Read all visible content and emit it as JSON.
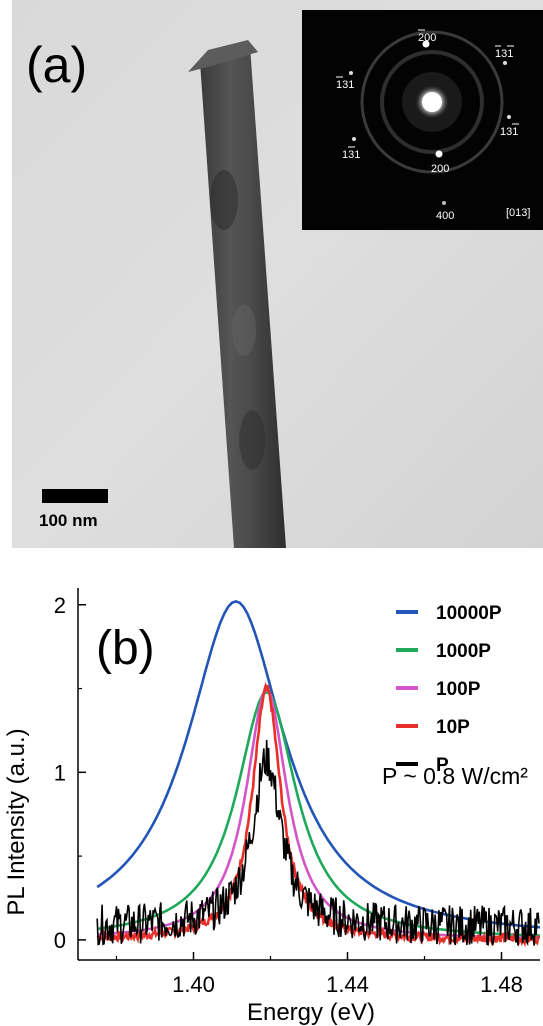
{
  "panel_a": {
    "label": "(a)",
    "scale_bar_label": "100 nm",
    "sad": {
      "zone_axis": "[013]",
      "spots": [
        {
          "label": "200",
          "bar": "2"
        },
        {
          "label": "131",
          "bar": "1"
        },
        {
          "label": "131",
          "bar": "12"
        },
        {
          "label": "131",
          "bar": "2"
        },
        {
          "label": "131",
          "bar": "3"
        },
        {
          "label": "200",
          "bar": ""
        },
        {
          "label": "400",
          "bar": ""
        }
      ]
    }
  },
  "panel_b": {
    "label": "(b)",
    "annotation": "P ~ 0.8 W/cm²"
  },
  "chart_data": {
    "type": "line",
    "title": "",
    "xlabel": "Energy (eV)",
    "ylabel": "PL Intensity (a.u.)",
    "xlim": [
      1.37,
      1.49
    ],
    "ylim": [
      -0.12,
      2.1
    ],
    "xticks": [
      1.4,
      1.44,
      1.48
    ],
    "xtick_labels": [
      "1.40",
      "1.44",
      "1.48"
    ],
    "yticks": [
      0,
      1,
      2
    ],
    "ytick_labels": [
      "0",
      "1",
      "2"
    ],
    "grid": false,
    "legend_position": "top-right",
    "series": [
      {
        "name": "10000P",
        "color": "#2255b8",
        "peak": 2.02,
        "center": 1.411,
        "width": 0.0155,
        "baseline": 0.0,
        "noise": 0.0
      },
      {
        "name": "1000P",
        "color": "#1fa85a",
        "peak": 1.48,
        "center": 1.419,
        "width": 0.0095,
        "baseline": 0.0,
        "noise": 0.0
      },
      {
        "name": "100P",
        "color": "#d455c8",
        "peak": 1.5,
        "center": 1.419,
        "width": 0.0065,
        "baseline": 0.0,
        "noise": 0.0
      },
      {
        "name": "10P",
        "color": "#e8302a",
        "peak": 1.5,
        "center": 1.419,
        "width": 0.0045,
        "baseline": 0.0,
        "noise": 0.025
      },
      {
        "name": "P",
        "color": "#000000",
        "peak": 1.0,
        "center": 1.419,
        "width": 0.0045,
        "baseline": 0.08,
        "noise": 0.12
      }
    ]
  }
}
